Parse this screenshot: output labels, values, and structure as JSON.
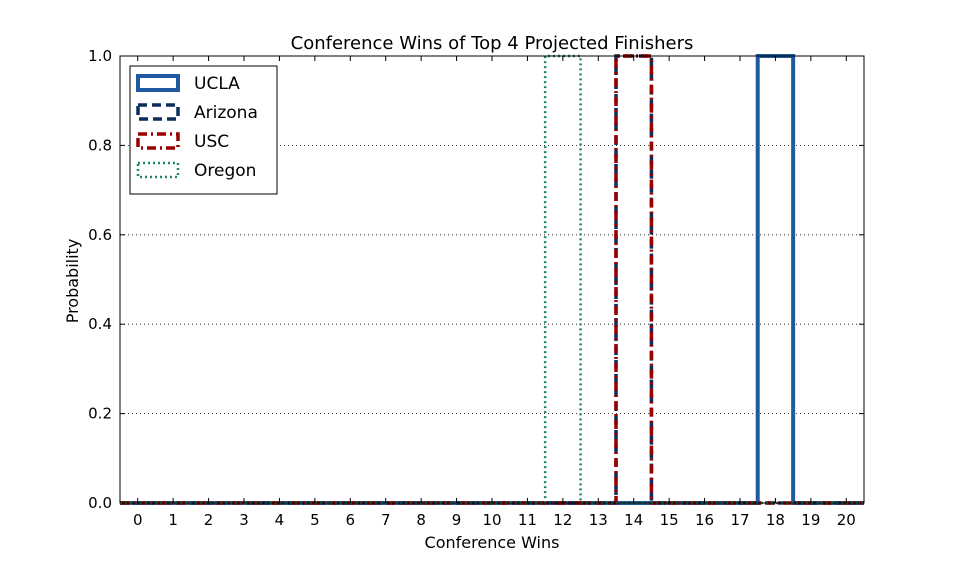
{
  "chart_data": {
    "type": "step",
    "title": "Conference Wins of Top 4 Projected Finishers",
    "xlabel": "Conference Wins",
    "ylabel": "Probability",
    "x": [
      0,
      1,
      2,
      3,
      4,
      5,
      6,
      7,
      8,
      9,
      10,
      11,
      12,
      13,
      14,
      15,
      16,
      17,
      18,
      19,
      20
    ],
    "x_tick_labels": [
      "0",
      "1",
      "2",
      "3",
      "4",
      "5",
      "6",
      "7",
      "8",
      "9",
      "10",
      "11",
      "12",
      "13",
      "14",
      "15",
      "16",
      "17",
      "18",
      "19",
      "20"
    ],
    "xlim": [
      -0.5,
      20.5
    ],
    "ylim": [
      0.0,
      1.0
    ],
    "y_ticks": [
      0.0,
      0.2,
      0.4,
      0.6,
      0.8,
      1.0
    ],
    "y_tick_labels": [
      "0.0",
      "0.2",
      "0.4",
      "0.6",
      "0.8",
      "1.0"
    ],
    "grid": "horizontal dotted",
    "legend_position": "top-left",
    "series": [
      {
        "name": "UCLA",
        "color": "#1f5aa0",
        "style": "solid",
        "values": [
          0,
          0,
          0,
          0,
          0,
          0,
          0,
          0,
          0,
          0,
          0,
          0,
          0,
          0,
          0,
          0,
          0,
          0,
          1,
          0,
          0
        ]
      },
      {
        "name": "Arizona",
        "color": "#0c2c5e",
        "style": "dashed",
        "values": [
          0,
          0,
          0,
          0,
          0,
          0,
          0,
          0,
          0,
          0,
          0,
          0,
          0,
          0,
          1,
          0,
          0,
          0,
          0,
          0,
          0
        ]
      },
      {
        "name": "USC",
        "color": "#990000",
        "style": "dashdot",
        "values": [
          0,
          0,
          0,
          0,
          0,
          0,
          0,
          0,
          0,
          0,
          0,
          0,
          0,
          0,
          1,
          0,
          0,
          0,
          0,
          0,
          0
        ]
      },
      {
        "name": "Oregon",
        "color": "#1e8a5a",
        "style": "dotted",
        "values": [
          0,
          0,
          0,
          0,
          0,
          0,
          0,
          0,
          0,
          0,
          0,
          0,
          1,
          0,
          0,
          0,
          0,
          0,
          0,
          0,
          0
        ]
      }
    ]
  }
}
